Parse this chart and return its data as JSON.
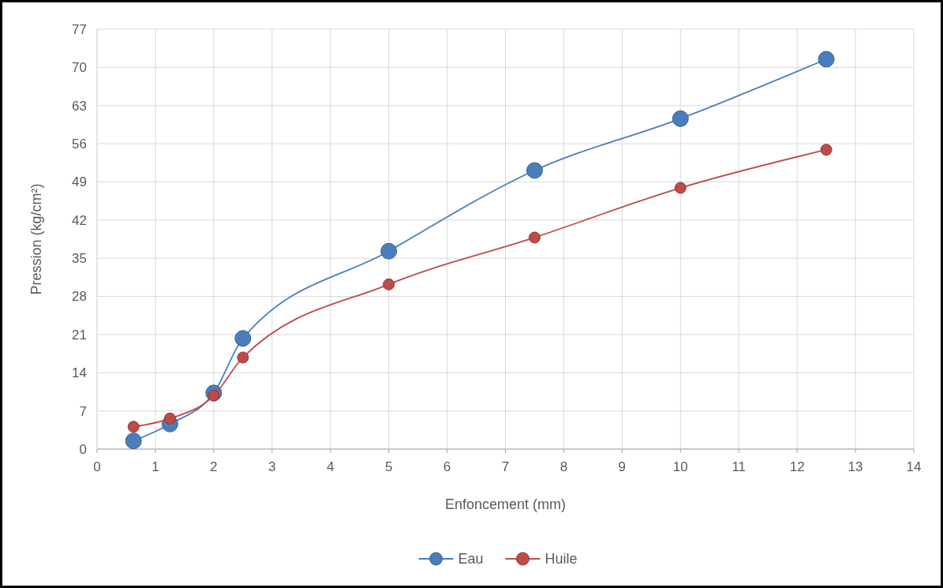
{
  "chart_data": {
    "type": "line",
    "xlabel": "Enfoncement (mm)",
    "ylabel": "Pression (kg/cm²)",
    "xlim": [
      0,
      14
    ],
    "xticks": [
      0,
      1,
      2,
      3,
      4,
      5,
      6,
      7,
      8,
      9,
      10,
      11,
      12,
      13,
      14
    ],
    "ylim": [
      0,
      77
    ],
    "yticks": [
      0,
      7,
      14,
      21,
      28,
      35,
      42,
      49,
      56,
      63,
      70,
      77
    ],
    "x": [
      0.625,
      1.25,
      2,
      2.5,
      5,
      7.5,
      10,
      12.5
    ],
    "series": [
      {
        "name": "Eau",
        "color": "#4a7ebb",
        "values": [
          1.5,
          4.6,
          10.3,
          20.3,
          36.3,
          51.1,
          60.6,
          71.5
        ]
      },
      {
        "name": "Huile",
        "color": "#be4b48",
        "values": [
          4.1,
          5.6,
          9.8,
          16.8,
          30.2,
          38.8,
          47.9,
          54.9
        ]
      }
    ],
    "grid": true,
    "legend": "bottom",
    "marker": "circle",
    "line_style": "solid"
  }
}
